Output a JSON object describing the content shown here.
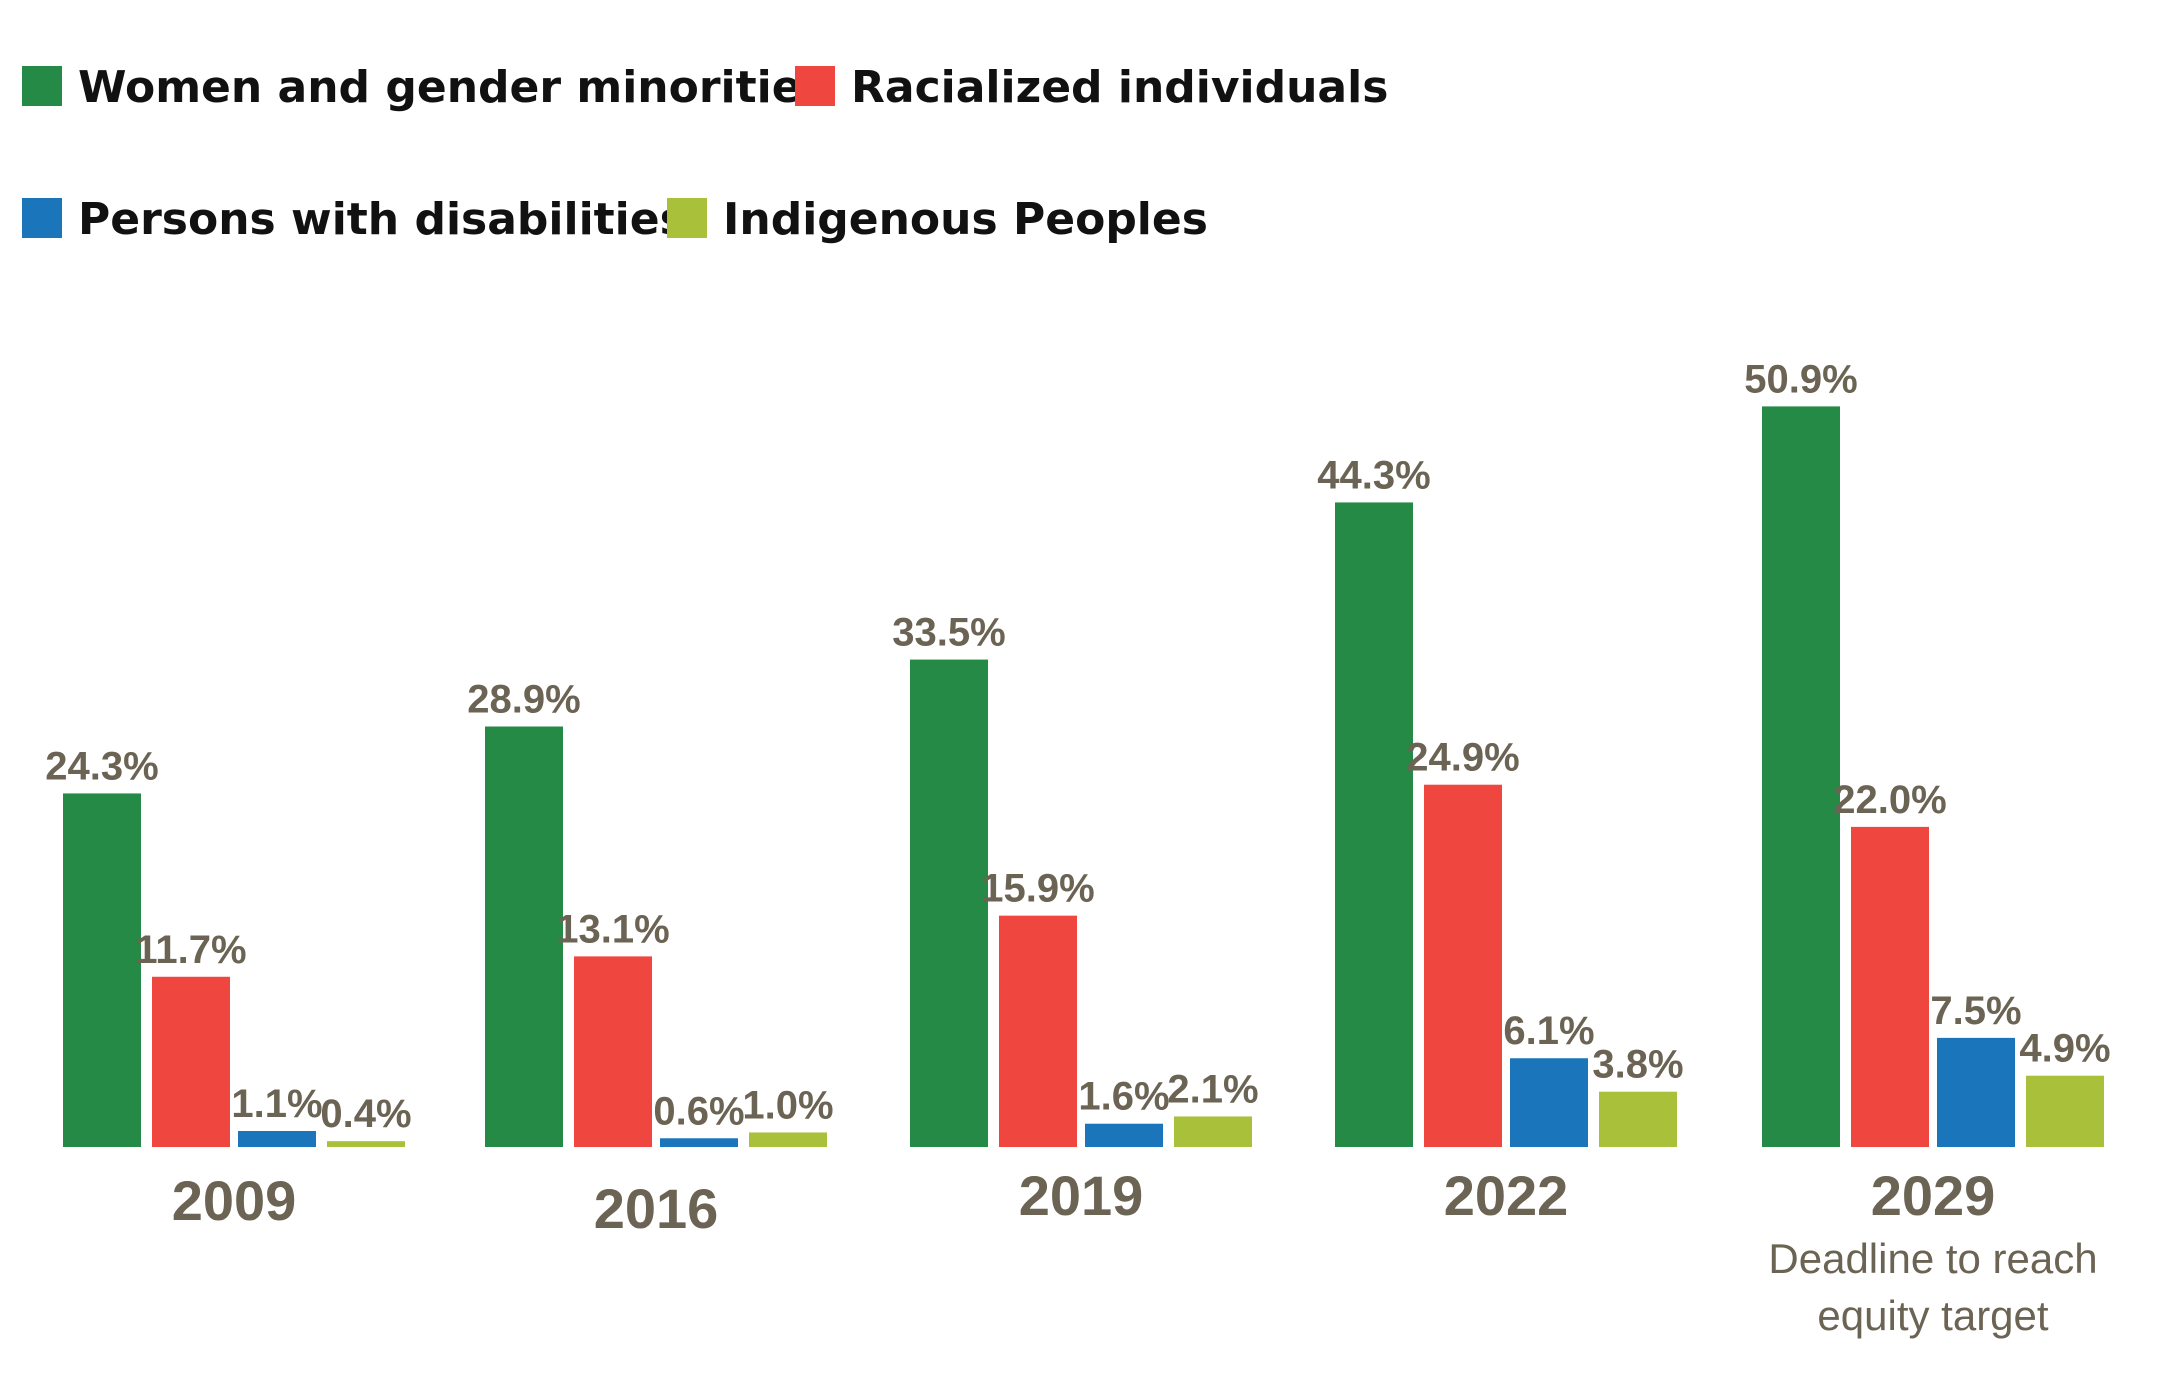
{
  "chart_data": {
    "type": "bar",
    "title": "",
    "xlabel": "",
    "ylabel": "",
    "ylim": [
      0,
      55
    ],
    "grid": false,
    "legend_position": "top-left",
    "categories": [
      "2009",
      "2016",
      "2019",
      "2022",
      "2029"
    ],
    "category_notes": [
      "",
      "",
      "",
      "",
      "Deadline to reach equity target"
    ],
    "category_note_lines": [
      [],
      [],
      [],
      [],
      [
        "Deadline to reach",
        "equity target"
      ]
    ],
    "series": [
      {
        "name": "Women and gender minorities",
        "color": "#248a46",
        "values": [
          24.3,
          28.9,
          33.5,
          44.3,
          50.9
        ],
        "labels": [
          "24.3%",
          "28.9%",
          "33.5%",
          "44.3%",
          "50.9%"
        ]
      },
      {
        "name": "Racialized individuals",
        "color": "#ef4640",
        "values": [
          11.7,
          13.1,
          15.9,
          24.9,
          22.0
        ],
        "labels": [
          "11.7%",
          "13.1%",
          "15.9%",
          "24.9%",
          "22.0%"
        ]
      },
      {
        "name": "Persons with disabilities",
        "color": "#1a75bb",
        "values": [
          1.1,
          0.6,
          1.6,
          6.1,
          7.5
        ],
        "labels": [
          "1.1%",
          "0.6%",
          "1.6%",
          "6.1%",
          "7.5%"
        ]
      },
      {
        "name": "Indigenous Peoples",
        "color": "#a8c03a",
        "values": [
          0.4,
          1.0,
          2.1,
          3.8,
          4.9
        ],
        "labels": [
          "0.4%",
          "1.0%",
          "2.1%",
          "3.8%",
          "4.9%"
        ]
      }
    ],
    "label_color": "#6b6353"
  }
}
